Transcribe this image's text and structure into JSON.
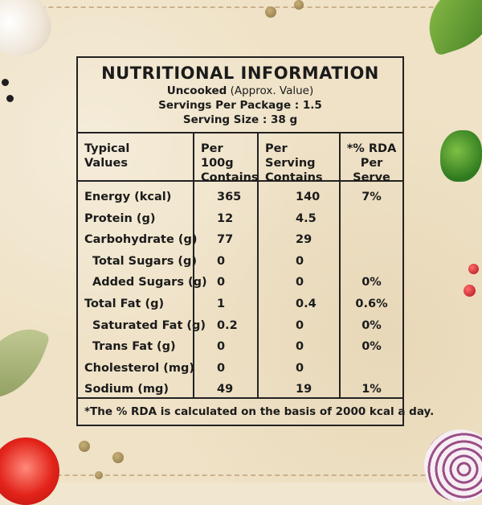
{
  "label": {
    "title": "NUTRITIONAL INFORMATION",
    "uncooked_bold": "Uncooked",
    "uncooked_note": " (Approx. Value)",
    "servings_per_package": "Servings Per Package : 1.5",
    "serving_size": "Serving Size : 38 g",
    "headers": {
      "typical_values": [
        "Typical",
        "Values"
      ],
      "per_100g": [
        "Per 100g",
        "Contains"
      ],
      "per_serving": [
        "Per Serving",
        "Contains"
      ],
      "rda": [
        "*% RDA",
        "Per Serve"
      ]
    },
    "rows": [
      {
        "name": "Energy (kcal)",
        "per_100g": "365",
        "per_serving": "140",
        "rda": "7%"
      },
      {
        "name": "Protein (g)",
        "per_100g": "12",
        "per_serving": "4.5",
        "rda": ""
      },
      {
        "name": "Carbohydrate (g)",
        "per_100g": "77",
        "per_serving": "29",
        "rda": ""
      },
      {
        "name": "Total Sugars (g)",
        "per_100g": "0",
        "per_serving": "0",
        "rda": ""
      },
      {
        "name": "Added Sugars (g)",
        "per_100g": "0",
        "per_serving": "0",
        "rda": "0%"
      },
      {
        "name": "Total Fat (g)",
        "per_100g": "1",
        "per_serving": "0.4",
        "rda": "0.6%"
      },
      {
        "name": "Saturated Fat (g)",
        "per_100g": "0.2",
        "per_serving": "0",
        "rda": "0%"
      },
      {
        "name": "Trans Fat (g)",
        "per_100g": "0",
        "per_serving": "0",
        "rda": "0%"
      },
      {
        "name": "Cholesterol (mg)",
        "per_100g": "0",
        "per_serving": "0",
        "rda": ""
      },
      {
        "name": "Sodium (mg)",
        "per_100g": "49",
        "per_serving": "19",
        "rda": "1%"
      }
    ],
    "footnote": "*The % RDA is calculated on the basis of 2000 kcal a day."
  }
}
